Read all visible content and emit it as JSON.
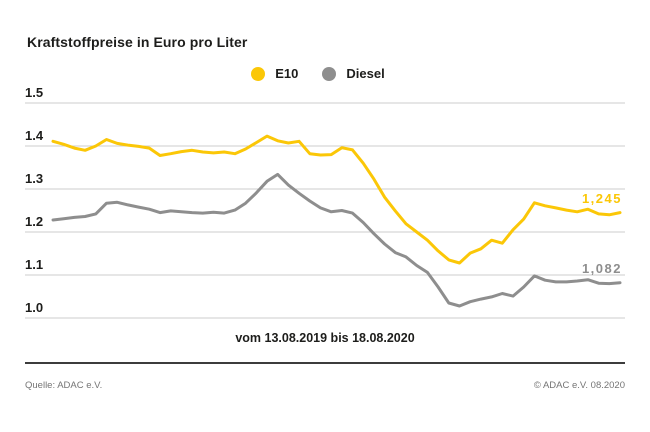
{
  "title": "Kraftstoffpreise in Euro pro Liter",
  "legend": {
    "e10": "E10",
    "diesel": "Diesel"
  },
  "caption": "vom 13.08.2019 bis 18.08.2020",
  "footer": {
    "source": "Quelle: ADAC e.V.",
    "copyright": "© ADAC e.V. 08.2020"
  },
  "colors": {
    "e10": "#fbc707",
    "diesel": "#8e8e8e",
    "grid": "#cccccc",
    "text": "#1d1d1b",
    "footer_text": "#757575",
    "rule": "#3c3c3c"
  },
  "chart_data": {
    "type": "line",
    "title": "Kraftstoffpreise in Euro pro Liter",
    "xlabel": "vom 13.08.2019 bis 18.08.2020",
    "ylabel": "Euro pro Liter",
    "ylim": [
      1.0,
      1.5
    ],
    "yticks": [
      "1.5",
      "1.4",
      "1.3",
      "1.2",
      "1.1",
      "1.0"
    ],
    "grid": true,
    "legend_position": "top-center",
    "end_labels": {
      "e10": "1,245",
      "diesel": "1,082"
    },
    "series": [
      {
        "name": "E10",
        "color": "#fbc707",
        "last_value_label": "1,245",
        "values": [
          1.411,
          1.404,
          1.395,
          1.39,
          1.4,
          1.415,
          1.406,
          1.402,
          1.399,
          1.395,
          1.378,
          1.382,
          1.387,
          1.39,
          1.386,
          1.384,
          1.386,
          1.382,
          1.393,
          1.408,
          1.423,
          1.412,
          1.407,
          1.411,
          1.382,
          1.379,
          1.38,
          1.396,
          1.391,
          1.36,
          1.323,
          1.281,
          1.249,
          1.219,
          1.2,
          1.181,
          1.156,
          1.135,
          1.128,
          1.151,
          1.161,
          1.181,
          1.174,
          1.205,
          1.23,
          1.268,
          1.261,
          1.256,
          1.251,
          1.247,
          1.253,
          1.242,
          1.24,
          1.245
        ]
      },
      {
        "name": "Diesel",
        "color": "#8e8e8e",
        "last_value_label": "1,082",
        "values": [
          1.228,
          1.231,
          1.234,
          1.236,
          1.242,
          1.267,
          1.269,
          1.263,
          1.258,
          1.253,
          1.245,
          1.249,
          1.247,
          1.245,
          1.244,
          1.246,
          1.244,
          1.251,
          1.267,
          1.291,
          1.318,
          1.334,
          1.309,
          1.29,
          1.272,
          1.256,
          1.247,
          1.25,
          1.244,
          1.222,
          1.196,
          1.172,
          1.152,
          1.142,
          1.122,
          1.106,
          1.072,
          1.035,
          1.028,
          1.038,
          1.044,
          1.049,
          1.057,
          1.051,
          1.072,
          1.098,
          1.088,
          1.084,
          1.084,
          1.086,
          1.089,
          1.081,
          1.08,
          1.082
        ]
      }
    ]
  }
}
